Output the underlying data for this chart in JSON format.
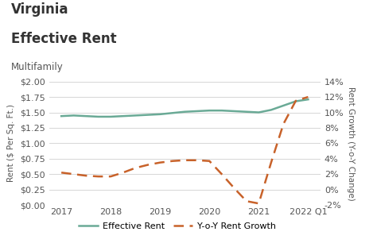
{
  "title_line1": "Virginia",
  "title_line2": "Effective Rent",
  "subtitle": "Multifamily",
  "background_color": "#ffffff",
  "plot_bg_color": "#ffffff",
  "x_labels": [
    "2017",
    "2018",
    "2019",
    "2020",
    "2021",
    "2022 Q1"
  ],
  "x_tick_positions": [
    2017,
    2018,
    2019,
    2020,
    2021,
    2022.0
  ],
  "rent_x": [
    2017.0,
    2017.25,
    2017.5,
    2017.75,
    2018.0,
    2018.25,
    2018.5,
    2018.75,
    2019.0,
    2019.25,
    2019.5,
    2019.75,
    2020.0,
    2020.25,
    2020.5,
    2020.75,
    2021.0,
    2021.25,
    2021.5,
    2021.75,
    2022.0
  ],
  "rent_y": [
    1.44,
    1.45,
    1.44,
    1.43,
    1.43,
    1.44,
    1.45,
    1.46,
    1.47,
    1.49,
    1.51,
    1.52,
    1.53,
    1.53,
    1.52,
    1.51,
    1.5,
    1.54,
    1.61,
    1.68,
    1.71
  ],
  "growth_x": [
    2017.0,
    2017.25,
    2017.5,
    2017.75,
    2018.0,
    2018.25,
    2018.5,
    2018.75,
    2019.0,
    2019.25,
    2019.5,
    2019.75,
    2020.0,
    2020.25,
    2020.5,
    2020.75,
    2021.0,
    2021.25,
    2021.5,
    2021.75,
    2022.0
  ],
  "growth_y": [
    2.2,
    2.0,
    1.8,
    1.7,
    1.7,
    2.2,
    2.8,
    3.2,
    3.5,
    3.7,
    3.8,
    3.8,
    3.7,
    2.0,
    0.2,
    -1.5,
    -1.8,
    3.5,
    8.5,
    11.5,
    12.0
  ],
  "rent_color": "#6aaa96",
  "growth_color": "#c8622a",
  "rent_label": "Effective Rent",
  "growth_label": "Y-o-Y Rent Growth",
  "ylabel_left": "Rent ($ Per Sq. Ft.)",
  "ylabel_right": "Rent Growth (Y-o-Y Change)",
  "ylim_left": [
    0.0,
    2.0
  ],
  "ylim_right": [
    -2,
    14
  ],
  "yticks_left": [
    0.0,
    0.25,
    0.5,
    0.75,
    1.0,
    1.25,
    1.5,
    1.75,
    2.0
  ],
  "yticks_right": [
    -2,
    0,
    2,
    4,
    6,
    8,
    10,
    12,
    14
  ],
  "xlim": [
    2016.75,
    2022.25
  ],
  "title_fontsize": 12,
  "subtitle_fontsize": 8.5,
  "axis_label_fontsize": 7.5,
  "tick_fontsize": 8,
  "legend_fontsize": 8,
  "grid_color": "#d0d0d0",
  "text_color": "#555555",
  "title_color": "#333333"
}
